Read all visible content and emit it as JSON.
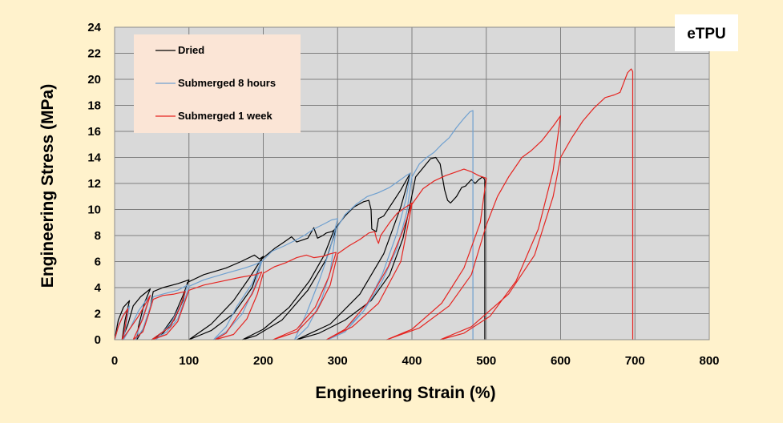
{
  "chart_data": {
    "type": "line",
    "badge": "eTPU",
    "xlabel": "Engineering Strain (%)",
    "ylabel": "Engineering Stress (MPa)",
    "xlim": [
      0,
      800
    ],
    "ylim": [
      0,
      24
    ],
    "xticks": [
      0,
      100,
      200,
      300,
      400,
      500,
      600,
      700,
      800
    ],
    "yticks": [
      0,
      2,
      4,
      6,
      8,
      10,
      12,
      14,
      16,
      18,
      20,
      22,
      24
    ],
    "grid": true,
    "legend_position": "top-left",
    "background_color": "#FFF2CC",
    "plot_color": "#D9D9D9",
    "legend_color": "#FBE5D6",
    "series": [
      {
        "name": "Dried",
        "color": "#000000",
        "points": [
          [
            0,
            0
          ],
          [
            5,
            1.5
          ],
          [
            12,
            2.5
          ],
          [
            20,
            3.0
          ],
          [
            14,
            1.5
          ],
          [
            10,
            0
          ],
          [
            18,
            1.2
          ],
          [
            25,
            2.6
          ],
          [
            35,
            3.3
          ],
          [
            48,
            3.9
          ],
          [
            40,
            2.8
          ],
          [
            32,
            1.0
          ],
          [
            30,
            0
          ],
          [
            40,
            1.0
          ],
          [
            48,
            2.5
          ],
          [
            52,
            3.7
          ],
          [
            65,
            4.0
          ],
          [
            85,
            4.3
          ],
          [
            100,
            4.6
          ],
          [
            92,
            3.4
          ],
          [
            80,
            1.8
          ],
          [
            65,
            0.6
          ],
          [
            50,
            0
          ],
          [
            65,
            0.5
          ],
          [
            80,
            1.5
          ],
          [
            92,
            3.0
          ],
          [
            98,
            4.4
          ],
          [
            120,
            5.0
          ],
          [
            150,
            5.5
          ],
          [
            170,
            6.0
          ],
          [
            188,
            6.5
          ],
          [
            195,
            6.2
          ],
          [
            200,
            6.4
          ],
          [
            182,
            4.8
          ],
          [
            160,
            3.0
          ],
          [
            130,
            1.2
          ],
          [
            100,
            0
          ],
          [
            130,
            0.7
          ],
          [
            160,
            2.0
          ],
          [
            185,
            4.0
          ],
          [
            198,
            6.2
          ],
          [
            215,
            7.0
          ],
          [
            228,
            7.5
          ],
          [
            238,
            7.9
          ],
          [
            245,
            7.5
          ],
          [
            260,
            7.8
          ],
          [
            268,
            8.6
          ],
          [
            273,
            7.8
          ],
          [
            280,
            8.0
          ],
          [
            285,
            8.2
          ],
          [
            292,
            8.3
          ],
          [
            298,
            8.5
          ],
          [
            285,
            6.2
          ],
          [
            260,
            3.8
          ],
          [
            225,
            1.5
          ],
          [
            190,
            0.3
          ],
          [
            172,
            0
          ],
          [
            200,
            0.8
          ],
          [
            235,
            2.5
          ],
          [
            262,
            4.5
          ],
          [
            282,
            6.5
          ],
          [
            295,
            8.4
          ],
          [
            310,
            9.5
          ],
          [
            322,
            10.2
          ],
          [
            335,
            10.6
          ],
          [
            342,
            10.7
          ],
          [
            345,
            10.0
          ],
          [
            346,
            8.5
          ],
          [
            352,
            8.3
          ],
          [
            355,
            9.3
          ],
          [
            362,
            9.5
          ],
          [
            370,
            10.2
          ],
          [
            385,
            11.5
          ],
          [
            398,
            12.8
          ],
          [
            385,
            10.2
          ],
          [
            362,
            6.6
          ],
          [
            330,
            3.5
          ],
          [
            290,
            1.2
          ],
          [
            245,
            0
          ],
          [
            275,
            0.5
          ],
          [
            310,
            1.5
          ],
          [
            345,
            3.0
          ],
          [
            370,
            5.0
          ],
          [
            388,
            7.8
          ],
          [
            398,
            10.5
          ],
          [
            405,
            12.5
          ],
          [
            415,
            13.2
          ],
          [
            425,
            13.9
          ],
          [
            432,
            14.0
          ],
          [
            438,
            13.5
          ],
          [
            444,
            11.5
          ],
          [
            448,
            10.7
          ],
          [
            452,
            10.5
          ],
          [
            460,
            11.0
          ],
          [
            467,
            11.7
          ],
          [
            472,
            11.8
          ],
          [
            480,
            12.3
          ],
          [
            485,
            12.0
          ],
          [
            490,
            12.3
          ],
          [
            495,
            12.5
          ],
          [
            498,
            12.3
          ],
          [
            498,
            0
          ]
        ]
      },
      {
        "name": "Submerged 8 hours",
        "color": "#6FA0D0",
        "points": [
          [
            0,
            0
          ],
          [
            6,
            1.2
          ],
          [
            13,
            2.0
          ],
          [
            20,
            2.6
          ],
          [
            15,
            1.0
          ],
          [
            12,
            0
          ],
          [
            22,
            1.0
          ],
          [
            32,
            2.2
          ],
          [
            42,
            3.0
          ],
          [
            48,
            3.4
          ],
          [
            38,
            1.8
          ],
          [
            28,
            0
          ],
          [
            38,
            0.8
          ],
          [
            46,
            2.2
          ],
          [
            52,
            3.3
          ],
          [
            65,
            3.5
          ],
          [
            85,
            3.8
          ],
          [
            98,
            4.2
          ],
          [
            90,
            2.8
          ],
          [
            75,
            1.2
          ],
          [
            55,
            0
          ],
          [
            70,
            0.6
          ],
          [
            85,
            1.6
          ],
          [
            95,
            3.2
          ],
          [
            100,
            4.1
          ],
          [
            120,
            4.6
          ],
          [
            150,
            5.1
          ],
          [
            175,
            5.5
          ],
          [
            190,
            5.8
          ],
          [
            197,
            6.0
          ],
          [
            185,
            4.3
          ],
          [
            165,
            2.6
          ],
          [
            150,
            1.0
          ],
          [
            133,
            0
          ],
          [
            150,
            0.6
          ],
          [
            172,
            2.0
          ],
          [
            188,
            4.0
          ],
          [
            198,
            6.0
          ],
          [
            212,
            6.8
          ],
          [
            228,
            7.2
          ],
          [
            242,
            7.6
          ],
          [
            255,
            8.0
          ],
          [
            268,
            8.5
          ],
          [
            282,
            8.9
          ],
          [
            292,
            9.2
          ],
          [
            300,
            9.3
          ],
          [
            290,
            7.0
          ],
          [
            275,
            4.5
          ],
          [
            258,
            2.0
          ],
          [
            242,
            0
          ],
          [
            260,
            1.0
          ],
          [
            278,
            3.0
          ],
          [
            290,
            5.2
          ],
          [
            298,
            8.5
          ],
          [
            310,
            9.6
          ],
          [
            325,
            10.4
          ],
          [
            340,
            11.0
          ],
          [
            355,
            11.3
          ],
          [
            370,
            11.7
          ],
          [
            385,
            12.3
          ],
          [
            392,
            12.6
          ],
          [
            398,
            12.8
          ],
          [
            392,
            10.8
          ],
          [
            380,
            8.2
          ],
          [
            360,
            5.0
          ],
          [
            335,
            2.2
          ],
          [
            310,
            0.6
          ],
          [
            287,
            0
          ],
          [
            310,
            0.8
          ],
          [
            335,
            2.2
          ],
          [
            360,
            4.5
          ],
          [
            380,
            7.0
          ],
          [
            393,
            9.8
          ],
          [
            400,
            12.5
          ],
          [
            410,
            13.5
          ],
          [
            420,
            14.0
          ],
          [
            430,
            14.4
          ],
          [
            440,
            15.0
          ],
          [
            450,
            15.5
          ],
          [
            460,
            16.3
          ],
          [
            470,
            17.0
          ],
          [
            478,
            17.5
          ],
          [
            482,
            17.6
          ],
          [
            482,
            0
          ]
        ]
      },
      {
        "name": "Submerged 1 week",
        "color": "#E52521",
        "points": [
          [
            0,
            0
          ],
          [
            5,
            1.0
          ],
          [
            11,
            1.8
          ],
          [
            18,
            2.4
          ],
          [
            14,
            0.9
          ],
          [
            10,
            0
          ],
          [
            20,
            0.8
          ],
          [
            32,
            1.8
          ],
          [
            42,
            2.8
          ],
          [
            48,
            3.4
          ],
          [
            38,
            1.6
          ],
          [
            25,
            0
          ],
          [
            38,
            0.6
          ],
          [
            46,
            2.0
          ],
          [
            52,
            3.1
          ],
          [
            65,
            3.4
          ],
          [
            80,
            3.5
          ],
          [
            95,
            3.7
          ],
          [
            88,
            2.5
          ],
          [
            75,
            1.0
          ],
          [
            50,
            0
          ],
          [
            70,
            0.4
          ],
          [
            85,
            1.4
          ],
          [
            95,
            3.0
          ],
          [
            100,
            3.8
          ],
          [
            120,
            4.2
          ],
          [
            145,
            4.5
          ],
          [
            170,
            4.8
          ],
          [
            190,
            5.0
          ],
          [
            198,
            5.2
          ],
          [
            185,
            3.5
          ],
          [
            165,
            1.8
          ],
          [
            150,
            0.5
          ],
          [
            135,
            0
          ],
          [
            160,
            0.4
          ],
          [
            178,
            1.6
          ],
          [
            192,
            3.5
          ],
          [
            200,
            5.1
          ],
          [
            215,
            5.6
          ],
          [
            230,
            5.9
          ],
          [
            245,
            6.3
          ],
          [
            258,
            6.5
          ],
          [
            268,
            6.3
          ],
          [
            280,
            6.4
          ],
          [
            290,
            6.6
          ],
          [
            298,
            6.7
          ],
          [
            288,
            4.8
          ],
          [
            270,
            2.5
          ],
          [
            245,
            0.8
          ],
          [
            213,
            0
          ],
          [
            245,
            0.6
          ],
          [
            272,
            2.2
          ],
          [
            290,
            4.2
          ],
          [
            300,
            6.6
          ],
          [
            315,
            7.2
          ],
          [
            330,
            7.7
          ],
          [
            342,
            8.2
          ],
          [
            350,
            8.3
          ],
          [
            352,
            7.8
          ],
          [
            355,
            7.4
          ],
          [
            358,
            8.0
          ],
          [
            370,
            9.0
          ],
          [
            380,
            9.7
          ],
          [
            392,
            10.2
          ],
          [
            400,
            10.5
          ],
          [
            388,
            8.4
          ],
          [
            368,
            5.6
          ],
          [
            340,
            2.8
          ],
          [
            310,
            0.8
          ],
          [
            285,
            0
          ],
          [
            320,
            1.0
          ],
          [
            355,
            2.8
          ],
          [
            385,
            6.0
          ],
          [
            400,
            10.4
          ],
          [
            415,
            11.6
          ],
          [
            430,
            12.2
          ],
          [
            445,
            12.6
          ],
          [
            460,
            12.9
          ],
          [
            470,
            13.1
          ],
          [
            480,
            12.9
          ],
          [
            490,
            12.6
          ],
          [
            500,
            12.4
          ],
          [
            492,
            9.0
          ],
          [
            470,
            5.5
          ],
          [
            440,
            2.8
          ],
          [
            400,
            0.8
          ],
          [
            366,
            0
          ],
          [
            410,
            0.9
          ],
          [
            450,
            2.6
          ],
          [
            480,
            5.0
          ],
          [
            500,
            8.8
          ],
          [
            515,
            11.0
          ],
          [
            530,
            12.5
          ],
          [
            548,
            14.0
          ],
          [
            560,
            14.5
          ],
          [
            575,
            15.3
          ],
          [
            590,
            16.4
          ],
          [
            600,
            17.2
          ],
          [
            590,
            13.0
          ],
          [
            570,
            8.5
          ],
          [
            540,
            4.5
          ],
          [
            505,
            1.8
          ],
          [
            470,
            0.5
          ],
          [
            438,
            0
          ],
          [
            480,
            1.0
          ],
          [
            530,
            3.5
          ],
          [
            565,
            6.5
          ],
          [
            590,
            11.0
          ],
          [
            600,
            14.0
          ],
          [
            615,
            15.5
          ],
          [
            630,
            16.8
          ],
          [
            645,
            17.8
          ],
          [
            660,
            18.6
          ],
          [
            672,
            18.8
          ],
          [
            680,
            19.0
          ],
          [
            690,
            20.5
          ],
          [
            695,
            20.8
          ],
          [
            697,
            20.6
          ],
          [
            697,
            0
          ]
        ]
      }
    ]
  }
}
